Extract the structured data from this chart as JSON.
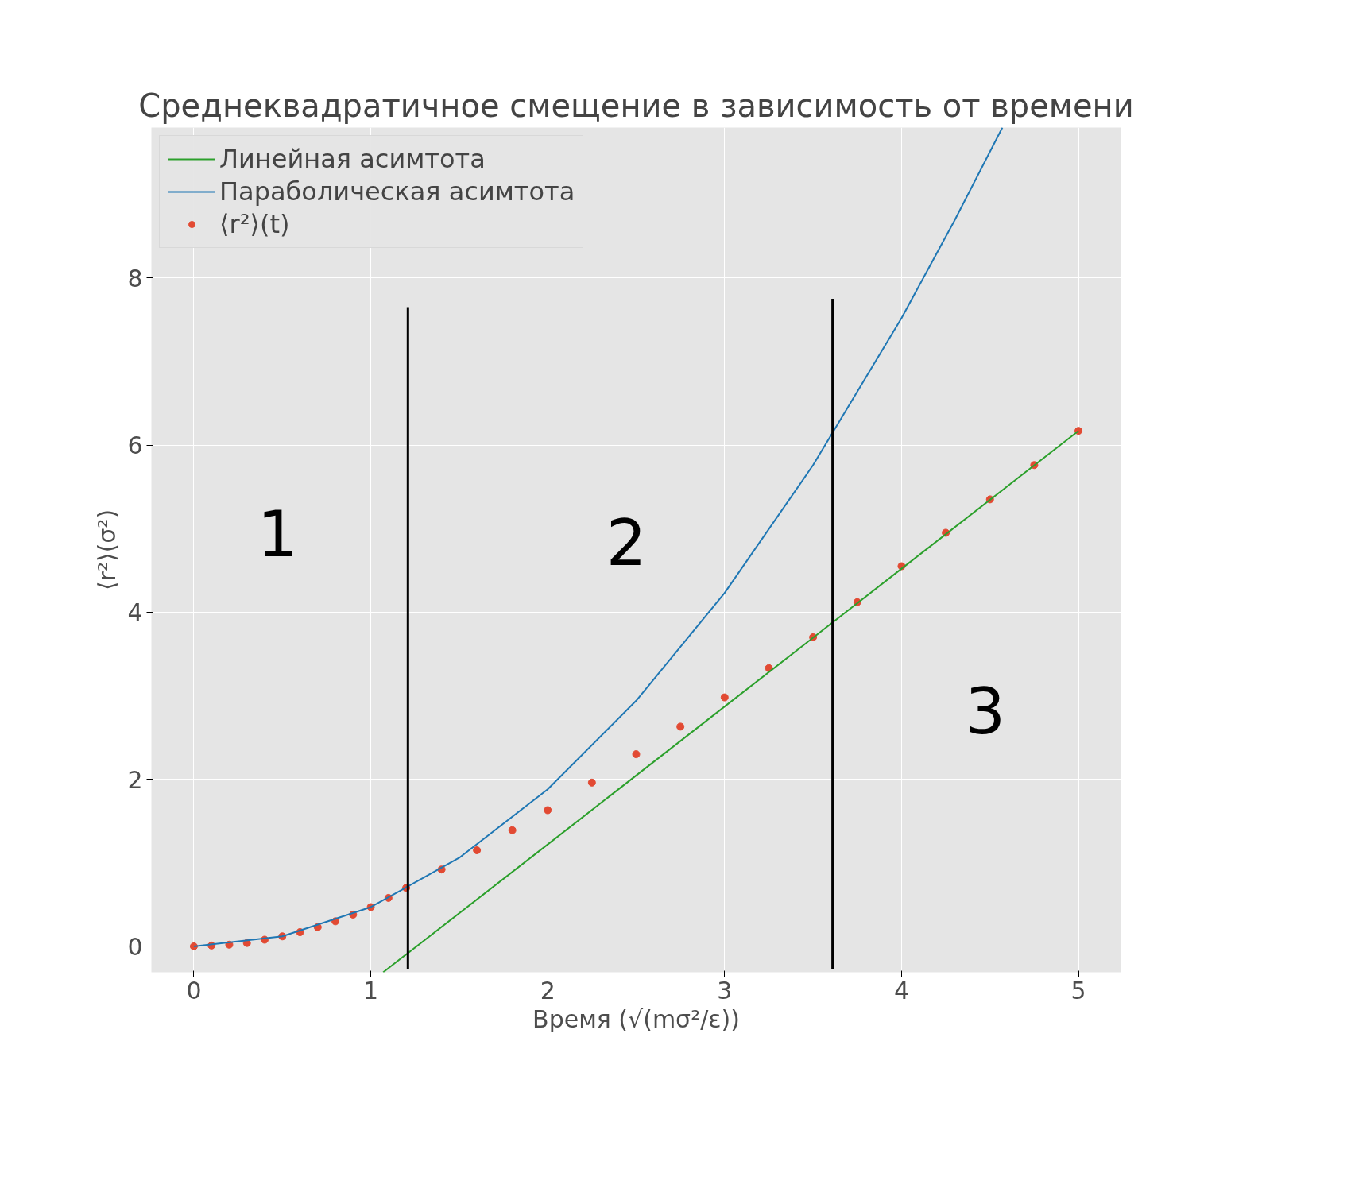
{
  "chart_data": {
    "type": "scatter",
    "title": "Среднеквадратичное смещение в зависимость от времени",
    "xlabel": "Время (√(mσ²/ε))",
    "ylabel": "⟨r²⟩(σ²)",
    "xlim": [
      -0.24,
      5.24
    ],
    "ylim": [
      -0.31,
      9.8
    ],
    "xticks": [
      0,
      1,
      2,
      3,
      4,
      5
    ],
    "yticks": [
      0,
      2,
      4,
      6,
      8
    ],
    "grid": true,
    "legend": "top left",
    "series": [
      {
        "name": "Линейная асимтота",
        "type": "line",
        "color": "#2ca02c",
        "x": [
          1.07,
          2,
          3,
          4,
          5
        ],
        "values": [
          -0.31,
          1.22,
          2.87,
          4.52,
          6.17
        ]
      },
      {
        "name": "Параболическая асимтота",
        "type": "line",
        "color": "#1f77b4",
        "x": [
          0,
          0.5,
          1,
          1.5,
          2,
          2.5,
          3,
          3.5,
          4,
          4.3,
          4.57
        ],
        "values": [
          0,
          0.12,
          0.47,
          1.06,
          1.88,
          2.94,
          4.23,
          5.76,
          7.52,
          8.69,
          9.8
        ]
      },
      {
        "name": "⟨r²⟩(t)",
        "marker": "circle",
        "color": "#e24a33",
        "x": [
          0,
          0.1,
          0.2,
          0.3,
          0.4,
          0.5,
          0.6,
          0.7,
          0.8,
          0.9,
          1,
          1.1,
          1.2,
          1.4,
          1.6,
          1.8,
          2,
          2.25,
          2.5,
          2.75,
          3,
          3.25,
          3.5,
          3.75,
          4,
          4.25,
          4.5,
          4.75,
          5
        ],
        "values": [
          0,
          0.01,
          0.02,
          0.04,
          0.08,
          0.12,
          0.17,
          0.23,
          0.3,
          0.38,
          0.47,
          0.58,
          0.7,
          0.92,
          1.15,
          1.39,
          1.63,
          1.96,
          2.3,
          2.63,
          2.98,
          3.33,
          3.7,
          4.12,
          4.55,
          4.95,
          5.35,
          5.76,
          6.17
        ]
      },
      {
        "type": "line",
        "color": "#000000",
        "x": [
          1.21,
          1.21
        ],
        "values": [
          -0.27,
          7.65
        ]
      },
      {
        "type": "line",
        "color": "#000000",
        "x": [
          3.61,
          3.61
        ],
        "values": [
          -0.27,
          7.75
        ]
      }
    ],
    "annotations": [
      "1",
      "2",
      "3"
    ]
  }
}
